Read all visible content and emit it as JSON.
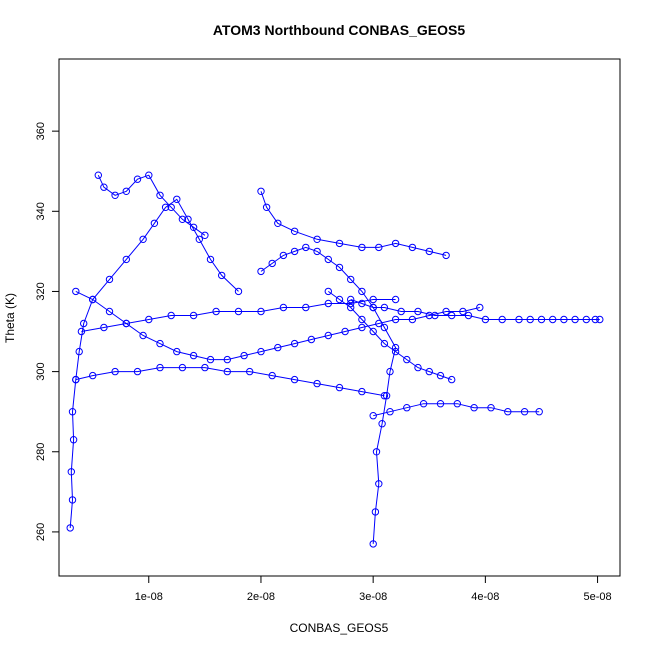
{
  "chart_data": {
    "type": "scatter",
    "title": "ATOM3 Northbound CONBAS_GEOS5",
    "xlabel": "CONBAS_GEOS5",
    "ylabel": "Theta (K)",
    "xlim": [
      2e-09,
      5.2e-08
    ],
    "ylim": [
      249,
      378
    ],
    "x_ticks": [
      1e-08,
      2e-08,
      3e-08,
      4e-08,
      5e-08
    ],
    "x_tick_labels": [
      "1e-08",
      "2e-08",
      "3e-08",
      "4e-08",
      "5e-08"
    ],
    "y_ticks": [
      260,
      280,
      300,
      320,
      340,
      360
    ],
    "y_tick_labels": [
      "260",
      "280",
      "300",
      "320",
      "340",
      "360"
    ],
    "grid": false,
    "legend": "none",
    "series_color": "#0000ff",
    "marker": "open-circle",
    "connected": true,
    "series": [
      {
        "x": [
          3e-09,
          3.2e-09,
          3.1e-09,
          3.3e-09,
          3.2e-09,
          3.5e-09,
          3.8e-09,
          4.2e-09,
          5e-09,
          6.5e-09,
          8e-09,
          9.5e-09,
          1.05e-08,
          1.15e-08,
          1.25e-08,
          1.35e-08,
          1.45e-08,
          1.55e-08,
          1.65e-08,
          1.8e-08
        ],
        "y": [
          261,
          268,
          275,
          283,
          290,
          298,
          305,
          312,
          318,
          323,
          328,
          333,
          337,
          341,
          343,
          338,
          333,
          328,
          324,
          320
        ]
      },
      {
        "x": [
          3e-08,
          3.02e-08,
          3.05e-08,
          3.03e-08,
          3.08e-08,
          3.12e-08,
          3.15e-08,
          3.2e-08,
          3.1e-08,
          3e-08,
          2.9e-08,
          2.8e-08,
          2.7e-08,
          2.6e-08,
          2.5e-08,
          2.4e-08,
          2.3e-08,
          2.2e-08,
          2.1e-08,
          2e-08
        ],
        "y": [
          257,
          265,
          272,
          280,
          287,
          294,
          300,
          306,
          311,
          316,
          320,
          323,
          326,
          328,
          330,
          331,
          330,
          329,
          327,
          325
        ]
      },
      {
        "x": [
          2.8e-08,
          2.9e-08,
          3e-08,
          3.1e-08,
          3.25e-08,
          3.4e-08,
          3.55e-08,
          3.7e-08,
          3.85e-08,
          4e-08,
          4.15e-08,
          4.3e-08,
          4.4e-08,
          4.5e-08,
          4.6e-08,
          4.7e-08,
          4.8e-08,
          4.9e-08,
          4.98e-08,
          5.02e-08
        ],
        "y": [
          318,
          317,
          316,
          316,
          315,
          315,
          314,
          314,
          314,
          313,
          313,
          313,
          313,
          313,
          313,
          313,
          313,
          313,
          313,
          313
        ]
      },
      {
        "x": [
          3e-08,
          3.15e-08,
          3.3e-08,
          3.45e-08,
          3.6e-08,
          3.75e-08,
          3.9e-08,
          4.05e-08,
          4.2e-08,
          4.35e-08,
          4.48e-08
        ],
        "y": [
          289,
          290,
          291,
          292,
          292,
          292,
          291,
          291,
          290,
          290,
          290
        ]
      },
      {
        "x": [
          3.5e-09,
          5e-09,
          7e-09,
          9e-09,
          1.1e-08,
          1.3e-08,
          1.5e-08,
          1.7e-08,
          1.9e-08,
          2.1e-08,
          2.3e-08,
          2.5e-08,
          2.7e-08,
          2.9e-08,
          3.1e-08
        ],
        "y": [
          298,
          299,
          300,
          300,
          301,
          301,
          301,
          300,
          300,
          299,
          298,
          297,
          296,
          295,
          294
        ]
      },
      {
        "x": [
          5.5e-09,
          6e-09,
          7e-09,
          8e-09,
          9e-09,
          1e-08,
          1.1e-08,
          1.2e-08,
          1.3e-08,
          1.4e-08,
          1.5e-08
        ],
        "y": [
          349,
          346,
          344,
          345,
          348,
          349,
          344,
          341,
          338,
          336,
          334
        ]
      },
      {
        "x": [
          2e-08,
          2.05e-08,
          2.15e-08,
          2.3e-08,
          2.5e-08,
          2.7e-08,
          2.9e-08,
          3.05e-08,
          3.2e-08,
          3.35e-08,
          3.5e-08,
          3.65e-08
        ],
        "y": [
          345,
          341,
          337,
          335,
          333,
          332,
          331,
          331,
          332,
          331,
          330,
          329
        ]
      },
      {
        "x": [
          4e-09,
          6e-09,
          8e-09,
          1e-08,
          1.2e-08,
          1.4e-08,
          1.6e-08,
          1.8e-08,
          2e-08,
          2.2e-08,
          2.4e-08,
          2.6e-08,
          2.8e-08,
          3e-08,
          3.2e-08
        ],
        "y": [
          310,
          311,
          312,
          313,
          314,
          314,
          315,
          315,
          315,
          316,
          316,
          317,
          317,
          318,
          318
        ]
      },
      {
        "x": [
          3.5e-09,
          5e-09,
          6.5e-09,
          8e-09,
          9.5e-09,
          1.1e-08,
          1.25e-08,
          1.4e-08,
          1.55e-08,
          1.7e-08,
          1.85e-08,
          2e-08,
          2.15e-08,
          2.3e-08,
          2.45e-08,
          2.6e-08,
          2.75e-08,
          2.9e-08,
          3.05e-08,
          3.2e-08,
          3.35e-08,
          3.5e-08,
          3.65e-08,
          3.8e-08,
          3.95e-08
        ],
        "y": [
          320,
          318,
          315,
          312,
          309,
          307,
          305,
          304,
          303,
          303,
          304,
          305,
          306,
          307,
          308,
          309,
          310,
          311,
          312,
          313,
          313,
          314,
          315,
          315,
          316
        ]
      },
      {
        "x": [
          2.6e-08,
          2.7e-08,
          2.8e-08,
          2.9e-08,
          3e-08,
          3.1e-08,
          3.2e-08,
          3.3e-08,
          3.4e-08,
          3.5e-08,
          3.6e-08,
          3.7e-08
        ],
        "y": [
          320,
          318,
          316,
          313,
          310,
          307,
          305,
          303,
          301,
          300,
          299,
          298
        ]
      }
    ]
  }
}
